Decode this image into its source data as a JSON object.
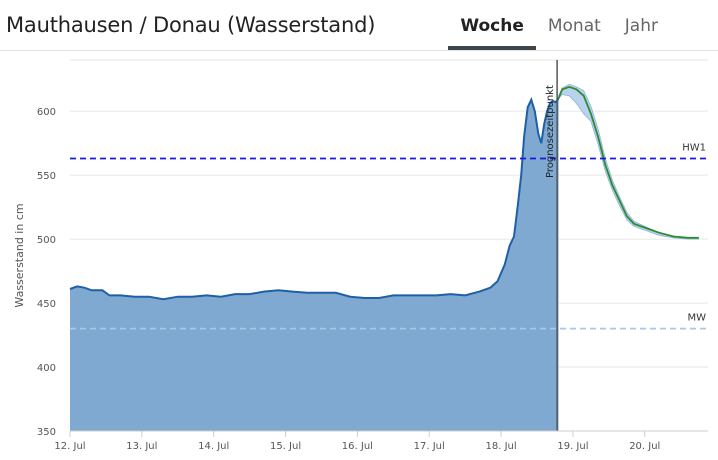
{
  "header": {
    "title": "Mauthausen / Donau (Wasserstand)",
    "tabs": [
      {
        "label": "Woche",
        "active": true
      },
      {
        "label": "Monat",
        "active": false
      },
      {
        "label": "Jahr",
        "active": false
      }
    ]
  },
  "chart_data": {
    "type": "area",
    "ylabel": "Wasserstand in cm",
    "ylim": [
      350,
      640
    ],
    "yticks": [
      350,
      400,
      450,
      500,
      550,
      600
    ],
    "xlim": [
      0,
      8.88
    ],
    "xticks": [
      {
        "x": 0,
        "label": "12. Jul"
      },
      {
        "x": 1,
        "label": "13. Jul"
      },
      {
        "x": 2,
        "label": "14. Jul"
      },
      {
        "x": 3,
        "label": "15. Jul"
      },
      {
        "x": 4,
        "label": "16. Jul"
      },
      {
        "x": 5,
        "label": "17. Jul"
      },
      {
        "x": 6,
        "label": "18. Jul"
      },
      {
        "x": 7,
        "label": "19. Jul"
      },
      {
        "x": 8,
        "label": "20. Jul"
      }
    ],
    "grid": true,
    "colors": {
      "measured_line": "#1f5fa8",
      "measured_fill": "#7fa9d1",
      "forecast_line": "#2e8b2e",
      "forecast_band": "#b9d3ee",
      "hw1_line": "#1a1adc",
      "mw_line": "#a8c8e6",
      "forecast_marker": "#555555"
    },
    "series": [
      {
        "name": "measured",
        "x": [
          0,
          0.1,
          0.2,
          0.3,
          0.45,
          0.55,
          0.7,
          0.9,
          1.1,
          1.3,
          1.5,
          1.7,
          1.9,
          2.1,
          2.3,
          2.5,
          2.7,
          2.9,
          3.1,
          3.3,
          3.5,
          3.7,
          3.9,
          4.1,
          4.3,
          4.5,
          4.7,
          4.9,
          5.1,
          5.3,
          5.5,
          5.7,
          5.85,
          5.95,
          6.05,
          6.12,
          6.18,
          6.23,
          6.28,
          6.32,
          6.37,
          6.42,
          6.47,
          6.52,
          6.56,
          6.6,
          6.64,
          6.68,
          6.72,
          6.76,
          6.8
        ],
        "y": [
          461,
          463,
          462,
          460,
          460,
          456,
          456,
          455,
          455,
          453,
          455,
          455,
          456,
          455,
          457,
          457,
          459,
          460,
          459,
          458,
          458,
          458,
          455,
          454,
          454,
          456,
          456,
          456,
          456,
          457,
          456,
          459,
          462,
          467,
          480,
          495,
          502,
          525,
          550,
          580,
          603,
          609,
          600,
          582,
          575,
          590,
          600,
          606,
          608,
          607,
          610
        ]
      },
      {
        "name": "forecast",
        "x": [
          6.8,
          6.85,
          6.95,
          7.05,
          7.15,
          7.25,
          7.35,
          7.45,
          7.55,
          7.65,
          7.75,
          7.85,
          8.0,
          8.2,
          8.4,
          8.6,
          8.75
        ],
        "y": [
          610,
          617,
          619,
          617,
          612,
          598,
          580,
          558,
          542,
          530,
          518,
          512,
          509,
          505,
          502,
          501,
          501
        ]
      }
    ],
    "forecast_band": {
      "x": [
        6.8,
        6.85,
        6.95,
        7.05,
        7.15,
        7.25,
        7.35,
        7.45,
        7.55,
        7.65,
        7.75,
        7.85,
        8.0,
        8.2,
        8.4,
        8.6,
        8.75
      ],
      "upper": [
        612,
        618,
        621,
        619,
        616,
        604,
        586,
        563,
        546,
        533,
        521,
        514,
        510,
        505,
        502,
        501,
        501
      ],
      "lower": [
        610,
        613,
        612,
        606,
        598,
        592,
        574,
        553,
        538,
        526,
        515,
        510,
        507,
        503,
        501,
        500,
        500
      ]
    },
    "reference_lines": [
      {
        "label": "HW1",
        "y": 563,
        "style": "dashed",
        "color": "#1a1adc"
      },
      {
        "label": "MW",
        "y": 430,
        "style": "dashed",
        "color": "#a8c8e6"
      }
    ],
    "forecast_marker": {
      "x": 6.78,
      "label": "Prognosezeitpunkt"
    }
  }
}
